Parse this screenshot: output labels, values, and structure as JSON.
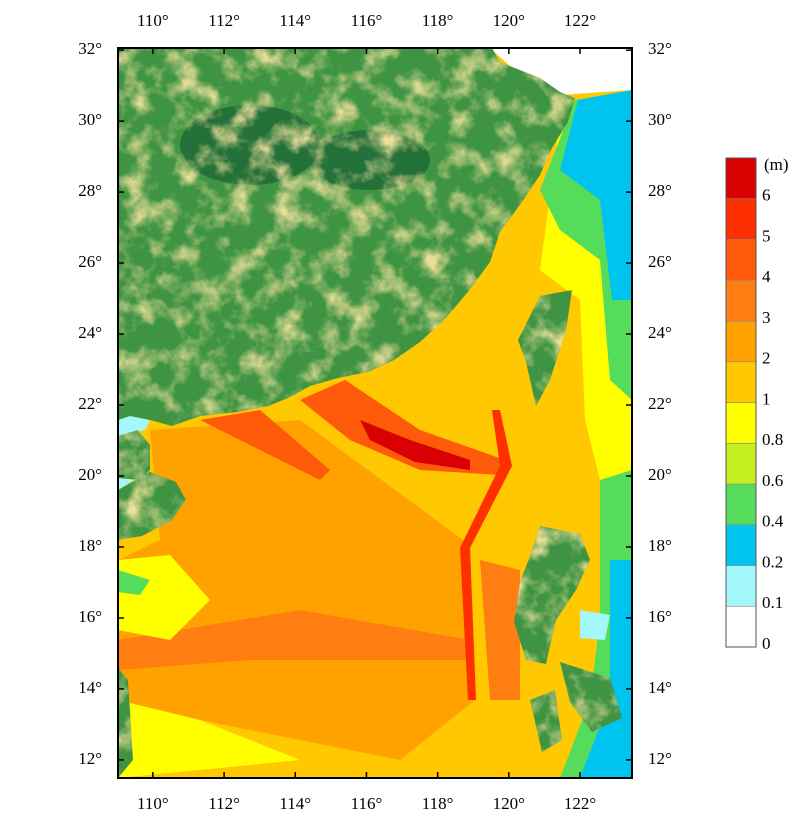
{
  "map": {
    "xlim": [
      109.02,
      123.46
    ],
    "ylim": [
      11.49,
      32.06
    ],
    "xticks": [
      {
        "value": 110,
        "label": "110°"
      },
      {
        "value": 112,
        "label": "112°"
      },
      {
        "value": 114,
        "label": "114°"
      },
      {
        "value": 116,
        "label": "116°"
      },
      {
        "value": 118,
        "label": "118°"
      },
      {
        "value": 120,
        "label": "120°"
      },
      {
        "value": 122,
        "label": "122°"
      }
    ],
    "yticks": [
      {
        "value": 12,
        "label": "12°"
      },
      {
        "value": 14,
        "label": "14°"
      },
      {
        "value": 16,
        "label": "16°"
      },
      {
        "value": 18,
        "label": "18°"
      },
      {
        "value": 20,
        "label": "20°"
      },
      {
        "value": 22,
        "label": "22°"
      },
      {
        "value": 24,
        "label": "24°"
      },
      {
        "value": 26,
        "label": "26°"
      },
      {
        "value": 28,
        "label": "28°"
      },
      {
        "value": 30,
        "label": "30°"
      },
      {
        "value": 32,
        "label": "32°"
      }
    ],
    "colorbar": {
      "unit": "(m)",
      "levels": [
        0,
        0.1,
        0.2,
        0.4,
        0.6,
        0.8,
        1,
        2,
        3,
        4,
        5,
        6
      ],
      "colors": [
        "#ffffff",
        "#a2f8fa",
        "#00c4f0",
        "#55dc5a",
        "#c6f022",
        "#ffff00",
        "#ffc800",
        "#ffa200",
        "#ff7e12",
        "#ff5a0a",
        "#ff3000",
        "#d80000"
      ]
    }
  }
}
